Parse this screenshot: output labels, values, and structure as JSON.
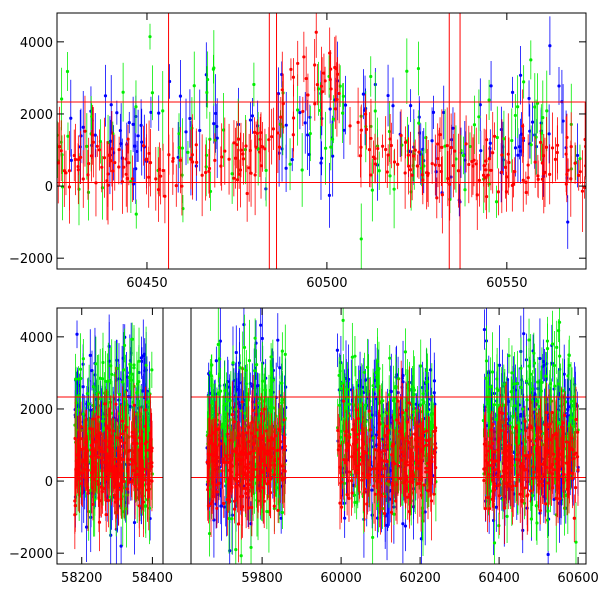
{
  "chart_data": [
    {
      "type": "scatter",
      "xlim": [
        60425,
        60572
      ],
      "ylim": [
        -2300,
        4800
      ],
      "xticks": [
        60450,
        60500,
        60550
      ],
      "yticks": [
        -2000,
        0,
        2000,
        4000
      ],
      "grid": false,
      "hlines": [
        2330,
        100
      ],
      "vlines": [
        60456,
        60484,
        60486,
        60534,
        60537
      ],
      "series": [
        {
          "color": "#0000ff",
          "base": 1500,
          "spread": 1300,
          "density": 140
        },
        {
          "color": "#00ee00",
          "base": 1700,
          "spread": 1500,
          "density": 120
        },
        {
          "color": "#ff0000",
          "base": 600,
          "spread": 600,
          "density": 260,
          "peak": {
            "center": 60497,
            "height": 2400,
            "width": 12
          }
        }
      ]
    },
    {
      "type": "scatter",
      "xlim": [
        58130,
        60620
      ],
      "ylim": [
        -2300,
        4800
      ],
      "xticks": [
        58200,
        58400,
        59800,
        60000,
        60200,
        60400,
        60600
      ],
      "yticks": [
        -2000,
        0,
        2000,
        4000
      ],
      "grid": false,
      "hlines": [
        2330,
        100
      ],
      "segments": [
        {
          "xmin": 58130,
          "xmax": 58430,
          "tick_offset": -1190
        },
        {
          "xmin": 59620,
          "xmax": 60620,
          "tick_offset": 0
        }
      ],
      "observing_windows": [
        [
          58180,
          58400
        ],
        [
          59660,
          59860
        ],
        [
          59990,
          60240
        ],
        [
          60360,
          60600
        ]
      ],
      "series": [
        {
          "color": "#0000ff",
          "base": 1300,
          "spread": 1600
        },
        {
          "color": "#00ee00",
          "base": 1300,
          "spread": 1600
        },
        {
          "color": "#ff0000",
          "base": 600,
          "spread": 900
        }
      ]
    }
  ]
}
